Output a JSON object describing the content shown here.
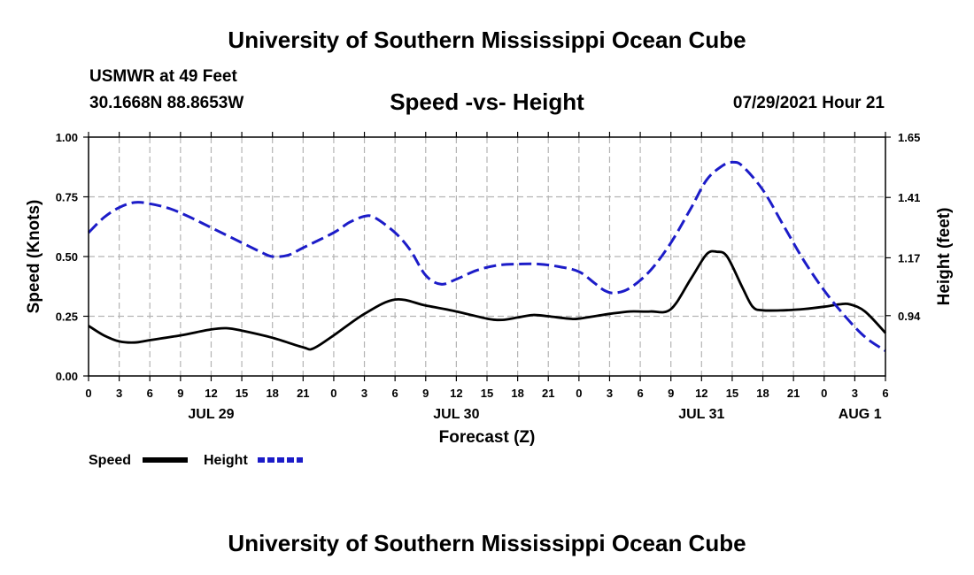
{
  "header": {
    "title": "University of Southern Mississippi Ocean Cube",
    "station": "USMWR at 49 Feet",
    "coordinates": "30.1668N  88.8653W",
    "subtitle": "Speed -vs- Height",
    "timestamp": "07/29/2021 Hour 21"
  },
  "footer": {
    "title": "University of Southern Mississippi Ocean Cube"
  },
  "chart_data": {
    "type": "line",
    "xlabel": "Forecast (Z)",
    "ylabel_left": "Speed (Knots)",
    "ylabel_right": "Height (feet)",
    "x_range_hours": [
      0,
      78
    ],
    "x_ticks": [
      {
        "h": 0,
        "label": "0"
      },
      {
        "h": 3,
        "label": "3"
      },
      {
        "h": 6,
        "label": "6"
      },
      {
        "h": 9,
        "label": "9"
      },
      {
        "h": 12,
        "label": "12"
      },
      {
        "h": 15,
        "label": "15"
      },
      {
        "h": 18,
        "label": "18"
      },
      {
        "h": 21,
        "label": "21"
      },
      {
        "h": 24,
        "label": "0"
      },
      {
        "h": 27,
        "label": "3"
      },
      {
        "h": 30,
        "label": "6"
      },
      {
        "h": 33,
        "label": "9"
      },
      {
        "h": 36,
        "label": "12"
      },
      {
        "h": 39,
        "label": "15"
      },
      {
        "h": 42,
        "label": "18"
      },
      {
        "h": 45,
        "label": "21"
      },
      {
        "h": 48,
        "label": "0"
      },
      {
        "h": 51,
        "label": "3"
      },
      {
        "h": 54,
        "label": "6"
      },
      {
        "h": 57,
        "label": "9"
      },
      {
        "h": 60,
        "label": "12"
      },
      {
        "h": 63,
        "label": "15"
      },
      {
        "h": 66,
        "label": "18"
      },
      {
        "h": 69,
        "label": "21"
      },
      {
        "h": 72,
        "label": "0"
      },
      {
        "h": 75,
        "label": "3"
      },
      {
        "h": 78,
        "label": "6"
      }
    ],
    "date_labels": [
      {
        "h": 12,
        "label": "JUL 29"
      },
      {
        "h": 36,
        "label": "JUL 30"
      },
      {
        "h": 60,
        "label": "JUL 31"
      },
      {
        "h": 75.5,
        "label": "AUG 1"
      }
    ],
    "y_left": {
      "range": [
        0,
        1
      ],
      "ticks": [
        "0.00",
        "0.25",
        "0.50",
        "0.75",
        "1.00"
      ]
    },
    "y_right": {
      "range": [
        0.7,
        1.65
      ],
      "ticks": [
        "0.94",
        "1.17",
        "1.41",
        "1.65"
      ]
    },
    "grid": true,
    "legend": [
      {
        "name": "Speed",
        "color": "#000000",
        "style": "solid"
      },
      {
        "name": "Height",
        "color": "#1c1cc8",
        "style": "dashed"
      }
    ],
    "series": [
      {
        "name": "Speed",
        "axis": "left",
        "color": "#000000",
        "points": [
          [
            0,
            0.21
          ],
          [
            1.5,
            0.17
          ],
          [
            3,
            0.145
          ],
          [
            4.5,
            0.14
          ],
          [
            6,
            0.15
          ],
          [
            9,
            0.17
          ],
          [
            12,
            0.195
          ],
          [
            13.5,
            0.2
          ],
          [
            15,
            0.19
          ],
          [
            18,
            0.16
          ],
          [
            21,
            0.12
          ],
          [
            22,
            0.115
          ],
          [
            24,
            0.17
          ],
          [
            27,
            0.26
          ],
          [
            30,
            0.32
          ],
          [
            33,
            0.295
          ],
          [
            36,
            0.27
          ],
          [
            39,
            0.24
          ],
          [
            40.5,
            0.235
          ],
          [
            42,
            0.245
          ],
          [
            43.5,
            0.255
          ],
          [
            45,
            0.25
          ],
          [
            47,
            0.24
          ],
          [
            48,
            0.24
          ],
          [
            51,
            0.26
          ],
          [
            53,
            0.27
          ],
          [
            55,
            0.27
          ],
          [
            57,
            0.28
          ],
          [
            59,
            0.41
          ],
          [
            60.5,
            0.51
          ],
          [
            61.5,
            0.52
          ],
          [
            62.5,
            0.5
          ],
          [
            64,
            0.37
          ],
          [
            65,
            0.29
          ],
          [
            66,
            0.275
          ],
          [
            68,
            0.275
          ],
          [
            70,
            0.28
          ],
          [
            72,
            0.29
          ],
          [
            73.5,
            0.3
          ],
          [
            74.5,
            0.3
          ],
          [
            76,
            0.27
          ],
          [
            78,
            0.18
          ]
        ]
      },
      {
        "name": "Height",
        "axis": "right",
        "color": "#1c1cc8",
        "points": [
          [
            0,
            1.27
          ],
          [
            1.5,
            1.33
          ],
          [
            3,
            1.37
          ],
          [
            4.5,
            1.39
          ],
          [
            6,
            1.385
          ],
          [
            8,
            1.365
          ],
          [
            10,
            1.33
          ],
          [
            12,
            1.29
          ],
          [
            15,
            1.23
          ],
          [
            17,
            1.19
          ],
          [
            18,
            1.175
          ],
          [
            19.5,
            1.18
          ],
          [
            21,
            1.21
          ],
          [
            24,
            1.27
          ],
          [
            25.5,
            1.31
          ],
          [
            27,
            1.335
          ],
          [
            28,
            1.33
          ],
          [
            30,
            1.27
          ],
          [
            31.5,
            1.2
          ],
          [
            33,
            1.1
          ],
          [
            34.5,
            1.065
          ],
          [
            36,
            1.085
          ],
          [
            38,
            1.12
          ],
          [
            40,
            1.14
          ],
          [
            42,
            1.145
          ],
          [
            44,
            1.145
          ],
          [
            46,
            1.135
          ],
          [
            48,
            1.115
          ],
          [
            49.5,
            1.07
          ],
          [
            50.5,
            1.04
          ],
          [
            51.5,
            1.03
          ],
          [
            53,
            1.05
          ],
          [
            55,
            1.12
          ],
          [
            57,
            1.23
          ],
          [
            59,
            1.37
          ],
          [
            60.5,
            1.48
          ],
          [
            62,
            1.535
          ],
          [
            63,
            1.55
          ],
          [
            64,
            1.535
          ],
          [
            66,
            1.44
          ],
          [
            68,
            1.3
          ],
          [
            70,
            1.16
          ],
          [
            72,
            1.04
          ],
          [
            74,
            0.94
          ],
          [
            76,
            0.855
          ],
          [
            78,
            0.8
          ]
        ]
      }
    ]
  }
}
